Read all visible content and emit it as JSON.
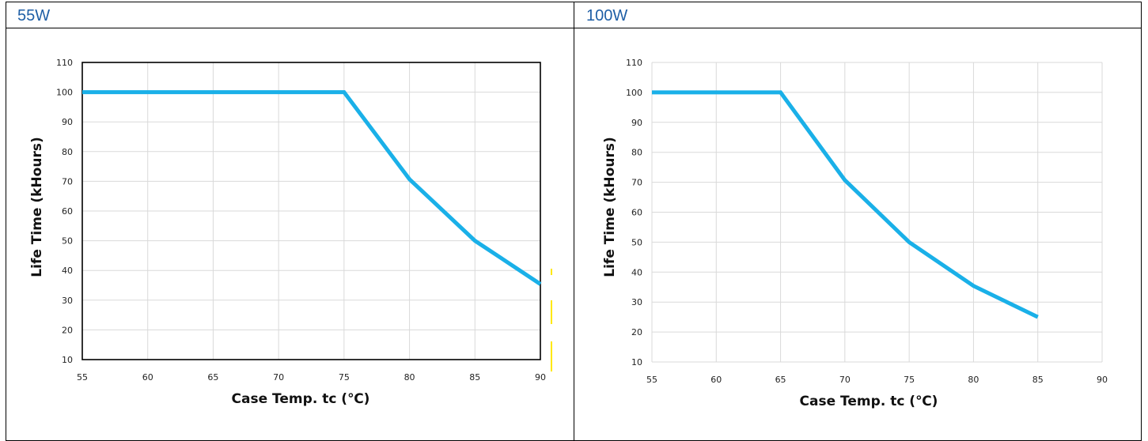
{
  "colors": {
    "header_text": "#1f5fa6",
    "series": "#1ab0e8",
    "grid": "#d9d9d9",
    "frame": "#000000",
    "artifact": "#ffe800"
  },
  "panels": [
    {
      "header": "55W"
    },
    {
      "header": "100W"
    }
  ],
  "chart_data": [
    {
      "type": "line",
      "title": "",
      "xlabel": "Case Temp. tc (℃)",
      "ylabel": "Life Time (kHours)",
      "xlim": [
        55,
        90
      ],
      "ylim": [
        10,
        110
      ],
      "xticks": [
        55,
        60,
        65,
        70,
        75,
        80,
        85,
        90
      ],
      "yticks": [
        10,
        20,
        30,
        40,
        50,
        60,
        70,
        80,
        90,
        100,
        110
      ],
      "grid": true,
      "plot_border": true,
      "series": [
        {
          "x": [
            55,
            75,
            80,
            85,
            90
          ],
          "y": [
            100,
            100,
            70.7,
            50,
            35.4
          ]
        }
      ]
    },
    {
      "type": "line",
      "title": "",
      "xlabel": "Case Temp. tc (℃)",
      "ylabel": "Life Time (kHours)",
      "xlim": [
        55,
        90
      ],
      "ylim": [
        10,
        110
      ],
      "xticks": [
        55,
        60,
        65,
        70,
        75,
        80,
        85,
        90
      ],
      "yticks": [
        10,
        20,
        30,
        40,
        50,
        60,
        70,
        80,
        90,
        100,
        110
      ],
      "grid": true,
      "plot_border": false,
      "series": [
        {
          "x": [
            55,
            65,
            70,
            75,
            80,
            85
          ],
          "y": [
            100,
            100,
            70.7,
            50,
            35.4,
            25
          ]
        }
      ]
    }
  ]
}
